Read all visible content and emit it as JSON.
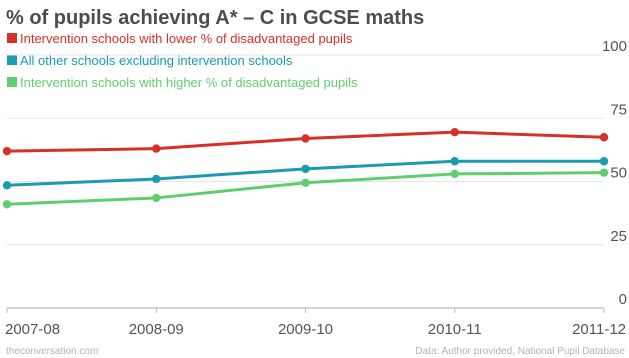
{
  "chart_data": {
    "type": "line",
    "title": "% of pupils achieving A* – C in GCSE maths",
    "categories": [
      "2007-08",
      "2008-09",
      "2009-10",
      "2010-11",
      "2011-12"
    ],
    "ylim": [
      0,
      100
    ],
    "yticks": [
      0,
      25,
      50,
      75,
      100
    ],
    "grid": true,
    "legend": "top-left",
    "series": [
      {
        "name": "Intervention schools with lower % of disadvantaged pupils",
        "color": "#d73027",
        "values": [
          62,
          63,
          67,
          69.5,
          67.5
        ]
      },
      {
        "name": "All other schools excluding intervention schools",
        "color": "#1a9bb0",
        "values": [
          48.5,
          51,
          55,
          58,
          58
        ]
      },
      {
        "name": "Intervention schools with higher % of disadvantaged pupils",
        "color": "#5fcf6e",
        "values": [
          41,
          43.5,
          49.5,
          53,
          53.5
        ]
      }
    ]
  },
  "footer": {
    "source_left": "theconversation.com",
    "source_right": "Data: Author provided, National Pupil Database"
  }
}
